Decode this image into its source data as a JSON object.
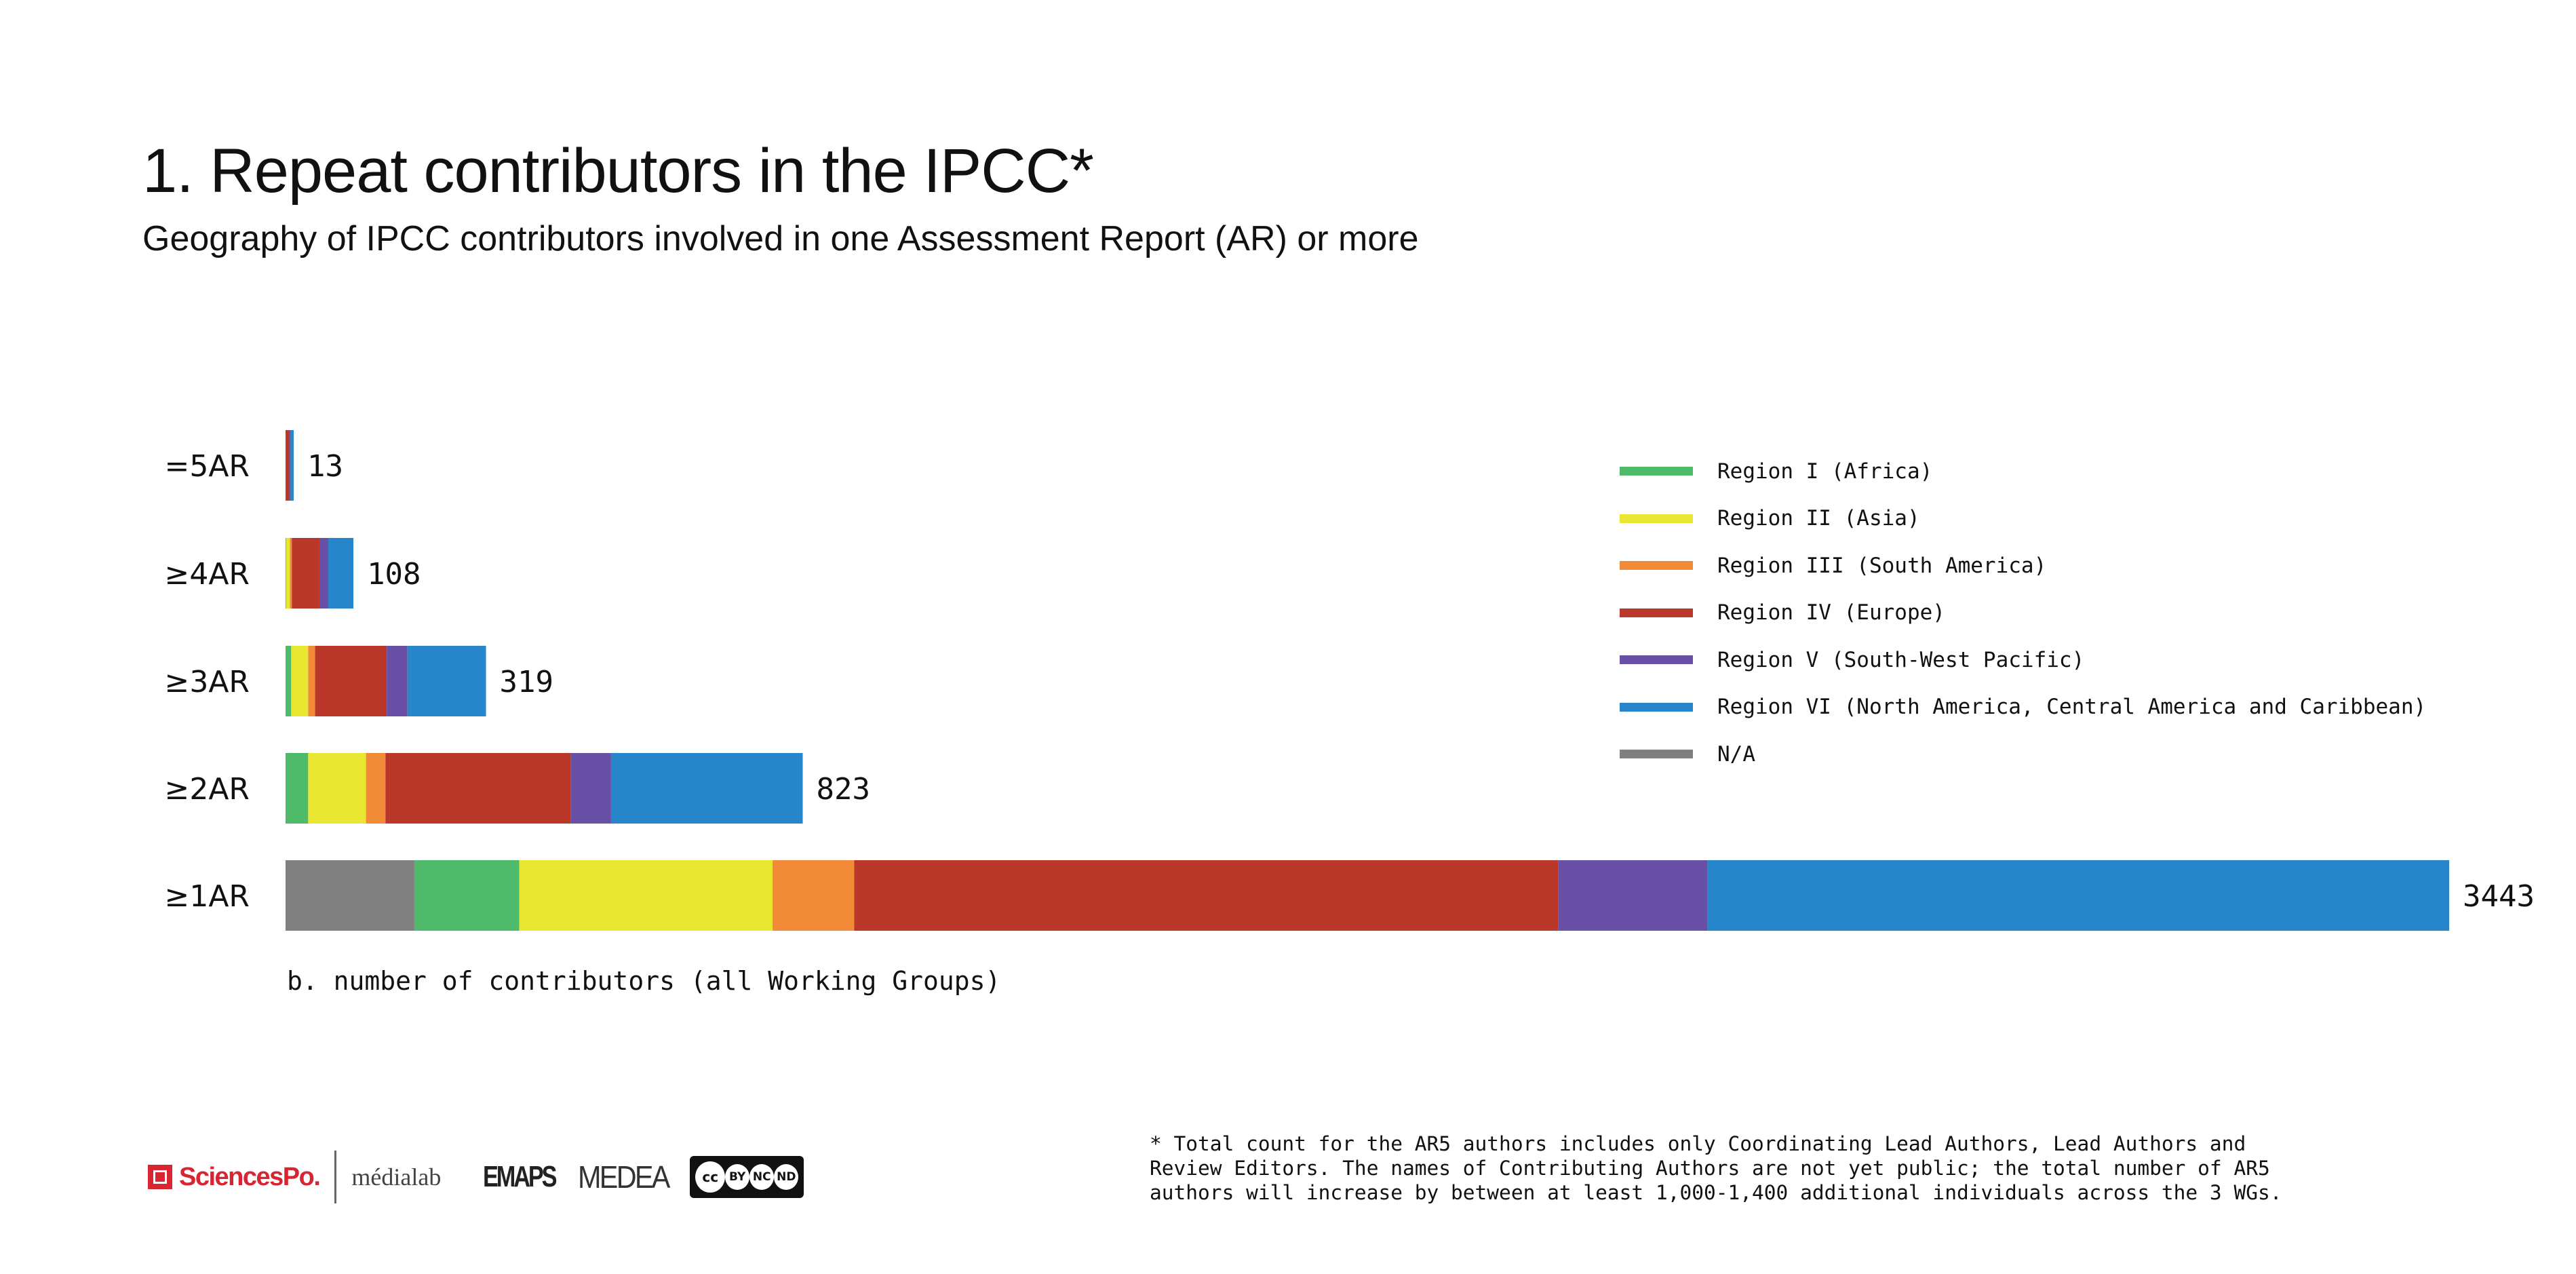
{
  "header": {
    "title": "1. Repeat contributors in the IPCC*",
    "subtitle": "Geography of IPCC contributors involved in one Assessment Report (AR) or more"
  },
  "chart_data": {
    "type": "bar",
    "orientation": "horizontal",
    "stacked": true,
    "title": "1. Repeat contributors in the IPCC*",
    "subtitle": "Geography of IPCC contributors involved in one Assessment Report (AR) or more",
    "xlabel": "b. number of contributors (all Working Groups)",
    "ylabel": "",
    "xlim": [
      0,
      3443
    ],
    "grid": false,
    "legend_position": "right",
    "categories": [
      "=5AR",
      "≥4AR",
      "≥3AR",
      "≥2AR",
      "≥1AR"
    ],
    "totals": [
      13,
      108,
      319,
      823,
      3443
    ],
    "series": [
      {
        "name": "N/A",
        "color": "#808080",
        "values": [
          0,
          0,
          0,
          0,
          205
        ]
      },
      {
        "name": "Region I (Africa)",
        "color": "#4fba6a",
        "values": [
          0,
          1,
          9,
          36,
          167
        ]
      },
      {
        "name": "Region II (Asia)",
        "color": "#e8e631",
        "values": [
          0,
          6,
          27,
          92,
          403
        ]
      },
      {
        "name": "Region III (South America)",
        "color": "#f28b37",
        "values": [
          0,
          3,
          11,
          31,
          130
        ]
      },
      {
        "name": "Region IV (Europe)",
        "color": "#ba3829",
        "values": [
          6,
          45,
          114,
          295,
          1120
        ]
      },
      {
        "name": "Region V (South-West Pacific)",
        "color": "#6750a5",
        "values": [
          2,
          13,
          33,
          64,
          238
        ]
      },
      {
        "name": "Region VI (North America, Central America and Caribbean)",
        "color": "#2786c9",
        "values": [
          5,
          40,
          125,
          305,
          1180
        ]
      }
    ]
  },
  "legend": {
    "order": [
      "Region I (Africa)",
      "Region II (Asia)",
      "Region III (South America)",
      "Region IV (Europe)",
      "Region V (South-West Pacific)",
      "Region VI (North America, Central America and Caribbean)",
      "N/A"
    ]
  },
  "footnote": "* Total count for the AR5 authors includes only Coordinating Lead Authors, Lead Authors and\nReview Editors. The names of Contributing Authors are not yet public; the total number of AR5\nauthors will increase by between at least 1,000-1,400 additional individuals across the 3 WGs.",
  "logos": {
    "sciencespo": "SciencesPo.",
    "medialab": "médialab",
    "emaps": "EMAPS",
    "medea": "MEDEA",
    "cc_license": [
      "cc",
      "BY",
      "NC",
      "ND"
    ]
  }
}
